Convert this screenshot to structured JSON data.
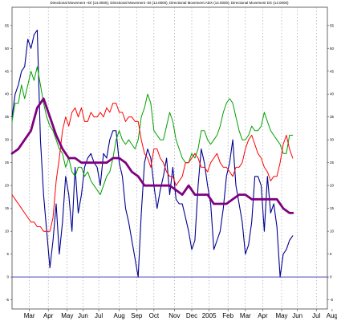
{
  "chart_data": {
    "type": "line",
    "title": "Directional Movement +DI (14.0000), Directional Movement -DI (14.0000), Directional Movement ADX (14.0000), Directional Movement DX (14.0000)",
    "xlabel": "",
    "ylabel": "",
    "grid": true,
    "grid_style": "vertical dotted",
    "legend": "none",
    "ylim": [
      -7,
      59
    ],
    "xlim": [
      0,
      100
    ],
    "y_ticks": [
      -5,
      0,
      5,
      10,
      15,
      20,
      25,
      30,
      35,
      40,
      45,
      50,
      55
    ],
    "x_ticks": [
      {
        "label": "Mar",
        "x": 5.5
      },
      {
        "label": "Apr",
        "x": 11.5
      },
      {
        "label": "May",
        "x": 17.5
      },
      {
        "label": "Jun",
        "x": 22.5
      },
      {
        "label": "Jul",
        "x": 27.5
      },
      {
        "label": "Aug",
        "x": 34
      },
      {
        "label": "Sep",
        "x": 39.5
      },
      {
        "label": "Oct",
        "x": 45
      },
      {
        "label": "Nov",
        "x": 51.5
      },
      {
        "label": "Dec",
        "x": 57
      },
      {
        "label": "2005",
        "x": 62.5
      },
      {
        "label": "Feb",
        "x": 68.5
      },
      {
        "label": "Mar",
        "x": 74
      },
      {
        "label": "Apr",
        "x": 79.5
      },
      {
        "label": "May",
        "x": 85.5
      },
      {
        "label": "Jun",
        "x": 90.5
      },
      {
        "label": "Jul",
        "x": 96.5
      },
      {
        "label": "Aug",
        "x": 101.5
      }
    ],
    "reference_line": {
      "y": 0,
      "color": "#4040c0"
    },
    "series": [
      {
        "color": "#000090",
        "stroke_width": 1.1,
        "points": [
          [
            0,
            35
          ],
          [
            1,
            40
          ],
          [
            2,
            42
          ],
          [
            3,
            45
          ],
          [
            4,
            46
          ],
          [
            5,
            52
          ],
          [
            6,
            50
          ],
          [
            7,
            53
          ],
          [
            8,
            54
          ],
          [
            9,
            30
          ],
          [
            10,
            18
          ],
          [
            11,
            10
          ],
          [
            12,
            2
          ],
          [
            13,
            8
          ],
          [
            14,
            16
          ],
          [
            15,
            5
          ],
          [
            16,
            12
          ],
          [
            17,
            22
          ],
          [
            18,
            18
          ],
          [
            19,
            10
          ],
          [
            20,
            24
          ],
          [
            21,
            14
          ],
          [
            22,
            18
          ],
          [
            23,
            24
          ],
          [
            24,
            26
          ],
          [
            25,
            27
          ],
          [
            26,
            25
          ],
          [
            27,
            24
          ],
          [
            28,
            20
          ],
          [
            29,
            27
          ],
          [
            30,
            26
          ],
          [
            31,
            30
          ],
          [
            32,
            32
          ],
          [
            33,
            32
          ],
          [
            34,
            25
          ],
          [
            35,
            22
          ],
          [
            36,
            15
          ],
          [
            37,
            12
          ],
          [
            38,
            8
          ],
          [
            39,
            4
          ],
          [
            40,
            0
          ],
          [
            41,
            14
          ],
          [
            42,
            25
          ],
          [
            43,
            28
          ],
          [
            44,
            26
          ],
          [
            45,
            20
          ],
          [
            46,
            15
          ],
          [
            47,
            19
          ],
          [
            48,
            22
          ],
          [
            49,
            26
          ],
          [
            50,
            18
          ],
          [
            51,
            24
          ],
          [
            52,
            17
          ],
          [
            53,
            16
          ],
          [
            54,
            16
          ],
          [
            55,
            13
          ],
          [
            56,
            10
          ],
          [
            57,
            6
          ],
          [
            58,
            8
          ],
          [
            59,
            20
          ],
          [
            60,
            28
          ],
          [
            61,
            25
          ],
          [
            62,
            20
          ],
          [
            63,
            16
          ],
          [
            64,
            6
          ],
          [
            65,
            8
          ],
          [
            66,
            10
          ],
          [
            67,
            15
          ],
          [
            68,
            22
          ],
          [
            69,
            25
          ],
          [
            70,
            30
          ],
          [
            71,
            20
          ],
          [
            72,
            16
          ],
          [
            73,
            12
          ],
          [
            74,
            5
          ],
          [
            75,
            7
          ],
          [
            76,
            12
          ],
          [
            77,
            22
          ],
          [
            78,
            22
          ],
          [
            79,
            20
          ],
          [
            80,
            10
          ],
          [
            81,
            22
          ],
          [
            82,
            14
          ],
          [
            83,
            16
          ],
          [
            84,
            11
          ],
          [
            85,
            0
          ],
          [
            86,
            5
          ],
          [
            87,
            6
          ],
          [
            88,
            8
          ],
          [
            89,
            9
          ]
        ]
      },
      {
        "color": "#00a000",
        "stroke_width": 1.0,
        "points": [
          [
            0,
            34
          ],
          [
            1,
            38
          ],
          [
            2,
            38
          ],
          [
            3,
            42
          ],
          [
            4,
            39
          ],
          [
            5,
            42
          ],
          [
            6,
            45
          ],
          [
            7,
            43
          ],
          [
            8,
            46
          ],
          [
            9,
            42
          ],
          [
            10,
            38
          ],
          [
            11,
            35
          ],
          [
            12,
            33
          ],
          [
            13,
            32
          ],
          [
            14,
            30
          ],
          [
            15,
            28
          ],
          [
            16,
            27
          ],
          [
            17,
            24
          ],
          [
            18,
            26
          ],
          [
            19,
            23
          ],
          [
            20,
            22
          ],
          [
            21,
            24
          ],
          [
            22,
            24
          ],
          [
            23,
            22
          ],
          [
            24,
            23
          ],
          [
            25,
            21
          ],
          [
            26,
            20
          ],
          [
            27,
            19
          ],
          [
            28,
            18
          ],
          [
            29,
            20
          ],
          [
            30,
            22
          ],
          [
            31,
            23
          ],
          [
            32,
            26
          ],
          [
            33,
            30
          ],
          [
            34,
            32
          ],
          [
            35,
            30
          ],
          [
            36,
            29
          ],
          [
            37,
            30
          ],
          [
            38,
            29
          ],
          [
            39,
            28
          ],
          [
            40,
            30
          ],
          [
            41,
            35
          ],
          [
            42,
            37
          ],
          [
            43,
            40
          ],
          [
            44,
            38
          ],
          [
            45,
            32
          ],
          [
            46,
            31
          ],
          [
            47,
            30
          ],
          [
            48,
            30
          ],
          [
            49,
            33
          ],
          [
            50,
            36
          ],
          [
            51,
            34
          ],
          [
            52,
            30
          ],
          [
            53,
            28
          ],
          [
            54,
            26
          ],
          [
            55,
            25
          ],
          [
            56,
            25
          ],
          [
            57,
            27
          ],
          [
            58,
            26
          ],
          [
            59,
            28
          ],
          [
            60,
            32
          ],
          [
            61,
            32
          ],
          [
            62,
            30
          ],
          [
            63,
            29
          ],
          [
            64,
            30
          ],
          [
            65,
            31
          ],
          [
            66,
            33
          ],
          [
            67,
            36
          ],
          [
            68,
            38
          ],
          [
            69,
            39
          ],
          [
            70,
            38
          ],
          [
            71,
            35
          ],
          [
            72,
            32
          ],
          [
            73,
            30
          ],
          [
            74,
            30
          ],
          [
            75,
            31
          ],
          [
            76,
            33
          ],
          [
            77,
            32
          ],
          [
            78,
            32
          ],
          [
            79,
            33
          ],
          [
            80,
            36
          ],
          [
            81,
            34
          ],
          [
            82,
            32
          ],
          [
            83,
            31
          ],
          [
            84,
            30
          ],
          [
            85,
            29
          ],
          [
            86,
            27
          ],
          [
            87,
            27
          ],
          [
            88,
            31
          ],
          [
            89,
            31
          ]
        ]
      },
      {
        "color": "#ff0000",
        "stroke_width": 1.0,
        "points": [
          [
            0,
            18
          ],
          [
            1,
            17
          ],
          [
            2,
            16
          ],
          [
            3,
            15
          ],
          [
            4,
            14
          ],
          [
            5,
            13
          ],
          [
            6,
            12
          ],
          [
            7,
            12
          ],
          [
            8,
            11
          ],
          [
            9,
            11
          ],
          [
            10,
            10
          ],
          [
            11,
            10
          ],
          [
            12,
            10
          ],
          [
            13,
            13
          ],
          [
            14,
            21
          ],
          [
            15,
            26
          ],
          [
            16,
            32
          ],
          [
            17,
            35
          ],
          [
            18,
            33
          ],
          [
            19,
            36
          ],
          [
            20,
            37
          ],
          [
            21,
            35
          ],
          [
            22,
            37
          ],
          [
            23,
            34
          ],
          [
            24,
            34
          ],
          [
            25,
            36
          ],
          [
            26,
            35
          ],
          [
            27,
            35
          ],
          [
            28,
            36
          ],
          [
            29,
            35
          ],
          [
            30,
            37
          ],
          [
            31,
            36
          ],
          [
            32,
            38
          ],
          [
            33,
            38
          ],
          [
            34,
            36
          ],
          [
            35,
            36
          ],
          [
            36,
            34
          ],
          [
            37,
            35
          ],
          [
            38,
            35
          ],
          [
            39,
            34
          ],
          [
            40,
            34
          ],
          [
            41,
            30
          ],
          [
            42,
            27
          ],
          [
            43,
            26
          ],
          [
            44,
            24
          ],
          [
            45,
            28
          ],
          [
            46,
            28
          ],
          [
            47,
            26
          ],
          [
            48,
            25
          ],
          [
            49,
            23
          ],
          [
            50,
            22
          ],
          [
            51,
            22
          ],
          [
            52,
            20
          ],
          [
            53,
            21
          ],
          [
            54,
            22
          ],
          [
            55,
            25
          ],
          [
            56,
            25
          ],
          [
            57,
            26
          ],
          [
            58,
            27
          ],
          [
            59,
            26
          ],
          [
            60,
            24
          ],
          [
            61,
            24
          ],
          [
            62,
            23
          ],
          [
            63,
            25
          ],
          [
            64,
            26
          ],
          [
            65,
            27
          ],
          [
            66,
            25
          ],
          [
            67,
            24
          ],
          [
            68,
            24
          ],
          [
            69,
            23
          ],
          [
            70,
            22
          ],
          [
            71,
            24
          ],
          [
            72,
            24
          ],
          [
            73,
            25
          ],
          [
            74,
            28
          ],
          [
            75,
            30
          ],
          [
            76,
            31
          ],
          [
            77,
            29
          ],
          [
            78,
            27
          ],
          [
            79,
            26
          ],
          [
            80,
            24
          ],
          [
            81,
            23
          ],
          [
            82,
            21
          ],
          [
            83,
            22
          ],
          [
            84,
            22
          ],
          [
            85,
            25
          ],
          [
            86,
            29
          ],
          [
            87,
            31
          ],
          [
            88,
            28
          ],
          [
            89,
            26
          ]
        ]
      },
      {
        "color": "#800080",
        "stroke_width": 2.8,
        "points": [
          [
            0,
            27
          ],
          [
            2,
            28
          ],
          [
            4,
            30
          ],
          [
            6,
            32
          ],
          [
            8,
            37
          ],
          [
            10,
            39
          ],
          [
            12,
            35
          ],
          [
            14,
            31
          ],
          [
            16,
            28
          ],
          [
            18,
            26
          ],
          [
            20,
            26
          ],
          [
            22,
            25
          ],
          [
            24,
            25
          ],
          [
            26,
            25
          ],
          [
            28,
            25
          ],
          [
            30,
            25
          ],
          [
            32,
            26
          ],
          [
            34,
            26
          ],
          [
            36,
            25
          ],
          [
            38,
            23
          ],
          [
            40,
            22
          ],
          [
            42,
            20
          ],
          [
            44,
            20
          ],
          [
            46,
            20
          ],
          [
            48,
            20
          ],
          [
            50,
            20
          ],
          [
            52,
            19
          ],
          [
            54,
            18
          ],
          [
            56,
            20
          ],
          [
            58,
            18
          ],
          [
            60,
            18
          ],
          [
            62,
            18
          ],
          [
            64,
            16
          ],
          [
            66,
            16
          ],
          [
            68,
            16
          ],
          [
            70,
            17
          ],
          [
            72,
            18
          ],
          [
            74,
            18
          ],
          [
            76,
            17
          ],
          [
            78,
            17
          ],
          [
            80,
            17
          ],
          [
            82,
            17
          ],
          [
            84,
            17
          ],
          [
            86,
            15
          ],
          [
            88,
            14
          ],
          [
            89,
            14
          ]
        ]
      }
    ]
  }
}
